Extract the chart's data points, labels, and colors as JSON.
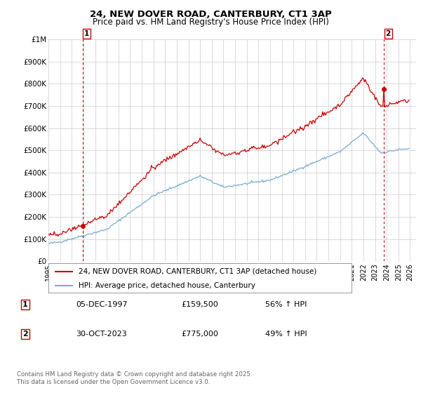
{
  "title": "24, NEW DOVER ROAD, CANTERBURY, CT1 3AP",
  "subtitle": "Price paid vs. HM Land Registry's House Price Index (HPI)",
  "legend_line1": "24, NEW DOVER ROAD, CANTERBURY, CT1 3AP (detached house)",
  "legend_line2": "HPI: Average price, detached house, Canterbury",
  "footnote": "Contains HM Land Registry data © Crown copyright and database right 2025.\nThis data is licensed under the Open Government Licence v3.0.",
  "table": [
    {
      "num": "1",
      "date": "05-DEC-1997",
      "price": "£159,500",
      "hpi": "56% ↑ HPI"
    },
    {
      "num": "2",
      "date": "30-OCT-2023",
      "price": "£775,000",
      "hpi": "49% ↑ HPI"
    }
  ],
  "sale1_value": 159500,
  "sale2_value": 775000,
  "red_line_color": "#cc0000",
  "blue_line_color": "#7aadce",
  "dashed_line_color": "#cc0000",
  "grid_color": "#cccccc",
  "background_color": "#ffffff",
  "plot_bg_color": "#ffffff",
  "ylim": [
    0,
    1000000
  ],
  "yticks": [
    0,
    100000,
    200000,
    300000,
    400000,
    500000,
    600000,
    700000,
    800000,
    900000,
    1000000
  ],
  "ytick_labels": [
    "£0",
    "£100K",
    "£200K",
    "£300K",
    "£400K",
    "£500K",
    "£600K",
    "£700K",
    "£800K",
    "£900K",
    "£1M"
  ],
  "xstart_year": 1995,
  "xend_year": 2026
}
